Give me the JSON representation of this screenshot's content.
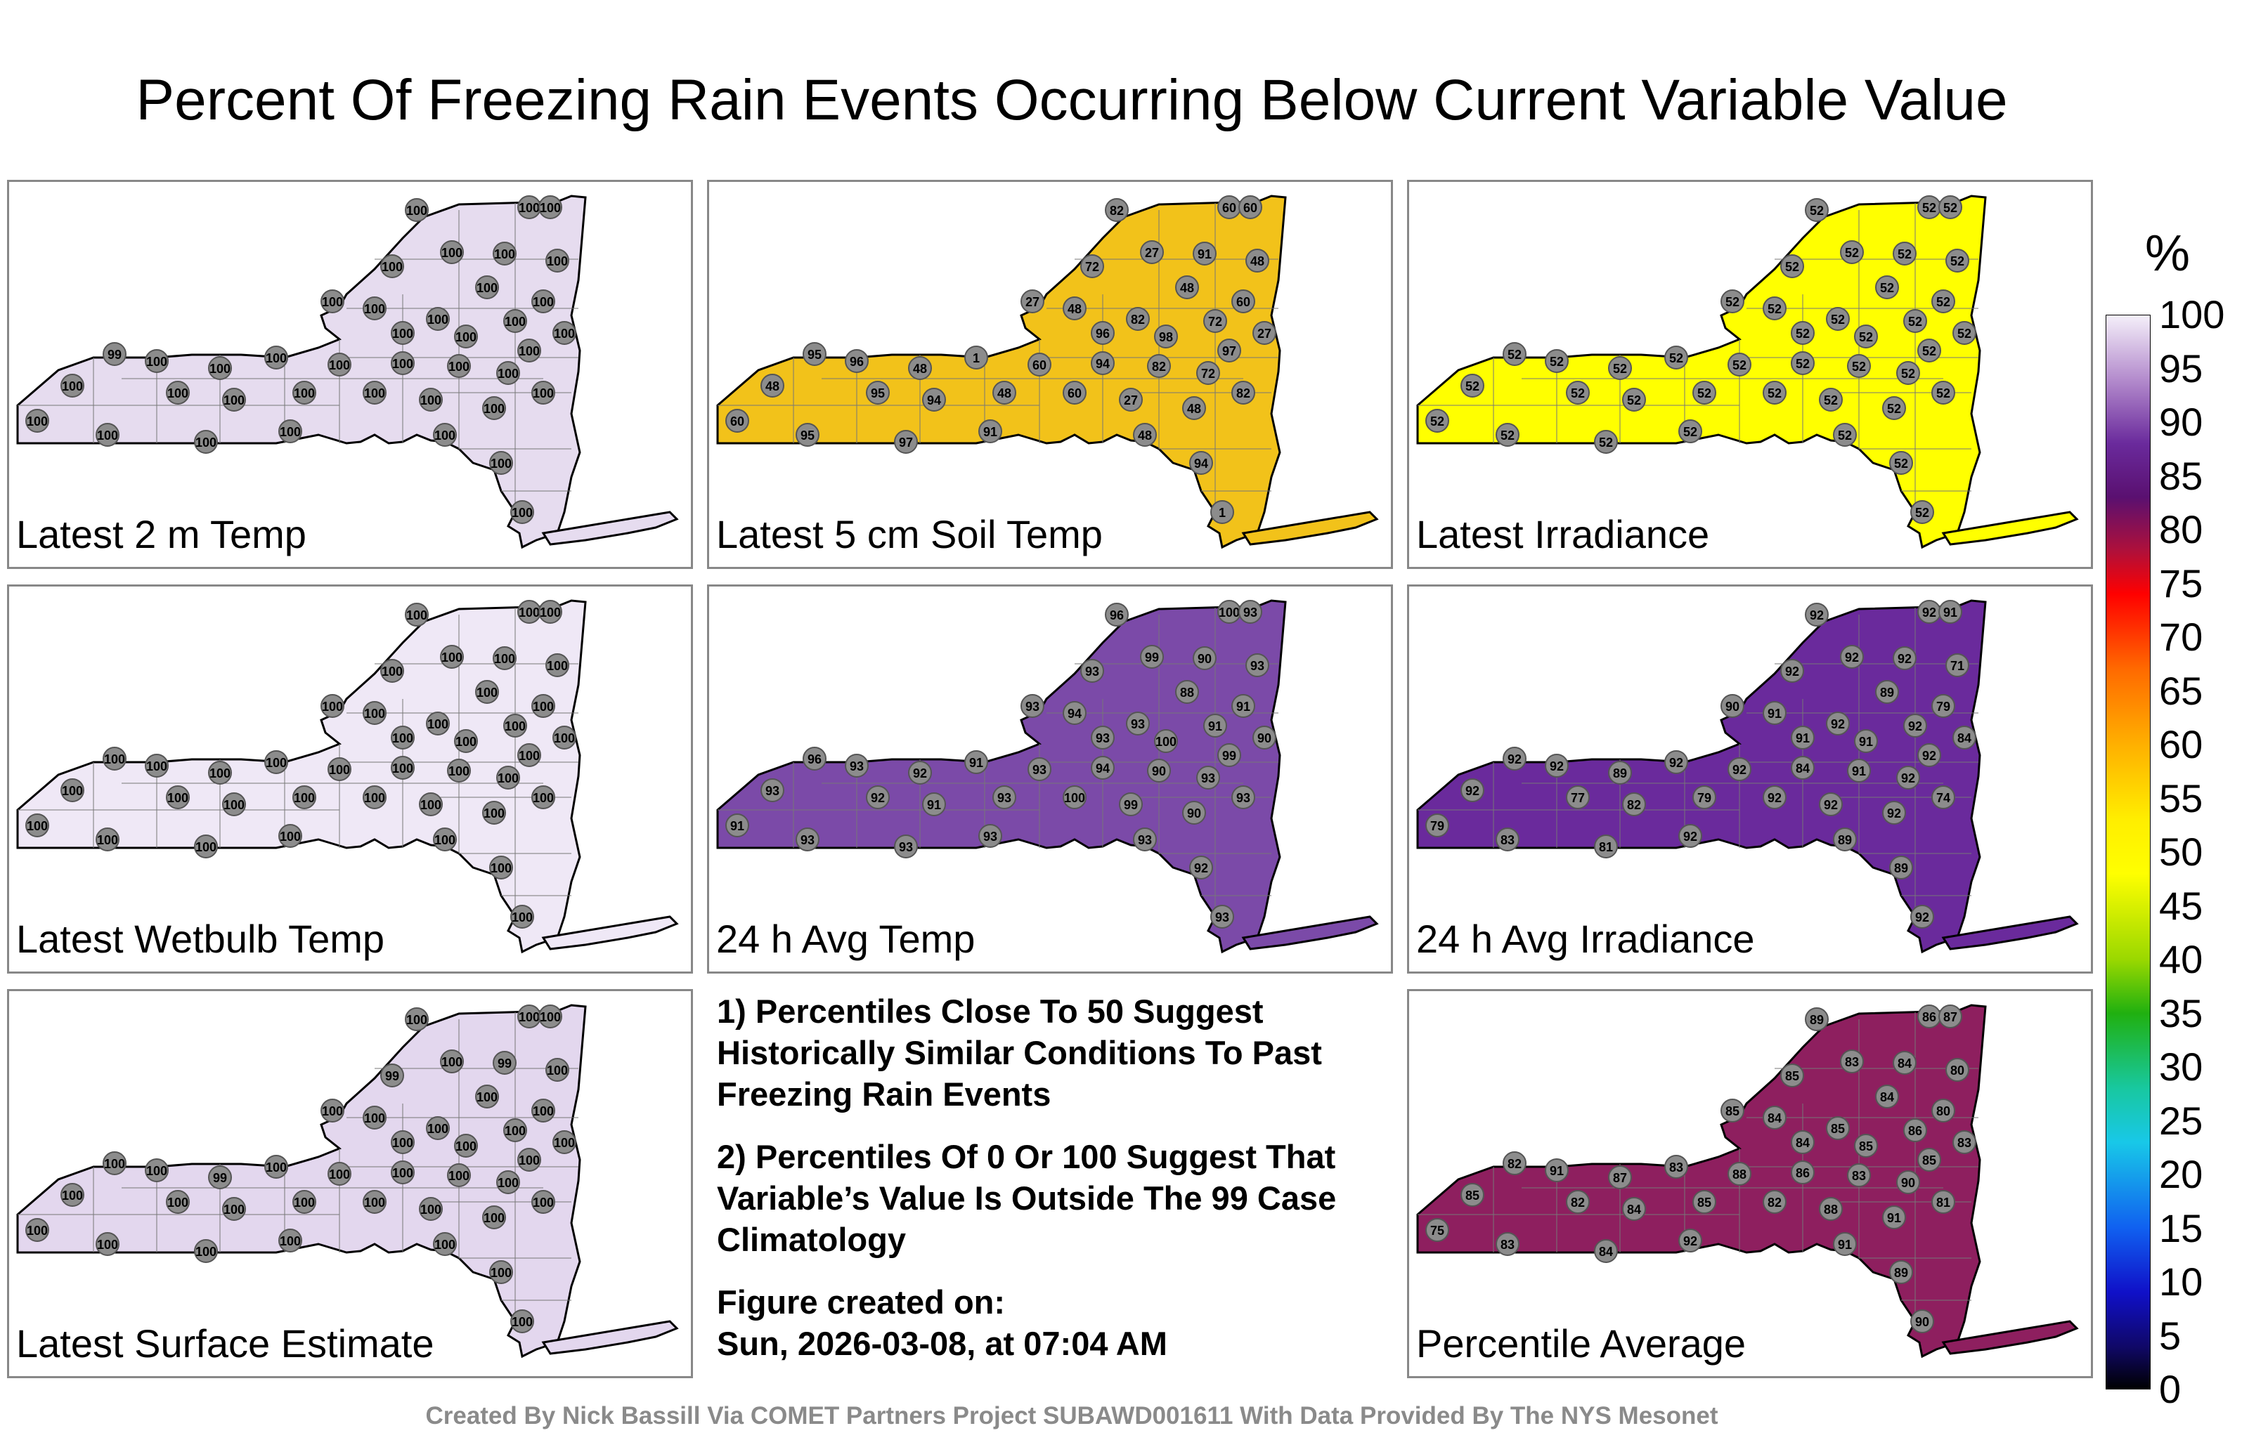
{
  "title": "Percent Of Freezing Rain Events Occurring Below Current Variable Value",
  "colorbar": {
    "unit": "%",
    "ticks": [
      "100",
      "95",
      "90",
      "85",
      "80",
      "75",
      "70",
      "65",
      "60",
      "55",
      "50",
      "45",
      "40",
      "35",
      "30",
      "25",
      "20",
      "15",
      "10",
      "5",
      "0"
    ]
  },
  "panels": [
    {
      "label": "Latest 2 m Temp",
      "fill": "#e6dcef",
      "stations": [
        "100",
        "100",
        "100",
        "100",
        "100",
        "100",
        "100",
        "100",
        "100",
        "100",
        "100",
        "100",
        "100",
        "100",
        "100",
        "100",
        "100",
        "99",
        "100",
        "100",
        "100",
        "100",
        "100",
        "100",
        "100",
        "100",
        "100",
        "100",
        "100",
        "100",
        "100",
        "100",
        "100",
        "100",
        "100",
        "100",
        "100",
        "100",
        "100",
        "100"
      ]
    },
    {
      "label": "Latest 5 cm Soil Temp",
      "fill": "#f2c21a",
      "stations": [
        "82",
        "60",
        "60",
        "27",
        "72",
        "91",
        "48",
        "27",
        "48",
        "60",
        "48",
        "82",
        "72",
        "27",
        "96",
        "98",
        "97",
        "95",
        "96",
        "48",
        "1",
        "60",
        "94",
        "82",
        "72",
        "48",
        "95",
        "94",
        "48",
        "60",
        "27",
        "48",
        "82",
        "60",
        "95",
        "97",
        "91",
        "48",
        "94",
        "1"
      ]
    },
    {
      "label": "Latest Irradiance",
      "fill": "#ffff00",
      "stations": [
        "52",
        "52",
        "52",
        "52",
        "52",
        "52",
        "52",
        "52",
        "52",
        "52",
        "52",
        "52",
        "52",
        "52",
        "52",
        "52",
        "52",
        "52",
        "52",
        "52",
        "52",
        "52",
        "52",
        "52",
        "52",
        "52",
        "52",
        "52",
        "52",
        "52",
        "52",
        "52",
        "52",
        "52",
        "52",
        "52",
        "52",
        "52",
        "52",
        "52"
      ]
    },
    {
      "label": "Latest Wetbulb Temp",
      "fill": "#efe8f6",
      "stations": [
        "100",
        "100",
        "100",
        "100",
        "100",
        "100",
        "100",
        "100",
        "100",
        "100",
        "100",
        "100",
        "100",
        "100",
        "100",
        "100",
        "100",
        "100",
        "100",
        "100",
        "100",
        "100",
        "100",
        "100",
        "100",
        "100",
        "100",
        "100",
        "100",
        "100",
        "100",
        "100",
        "100",
        "100",
        "100",
        "100",
        "100",
        "100",
        "100",
        "100"
      ]
    },
    {
      "label": "24 h Avg Temp",
      "fill": "#7b4aa8",
      "stations": [
        "96",
        "100",
        "93",
        "99",
        "93",
        "90",
        "93",
        "93",
        "88",
        "91",
        "94",
        "93",
        "91",
        "90",
        "93",
        "100",
        "99",
        "96",
        "93",
        "92",
        "91",
        "93",
        "94",
        "90",
        "93",
        "93",
        "92",
        "91",
        "93",
        "100",
        "99",
        "90",
        "93",
        "91",
        "93",
        "93",
        "93",
        "93",
        "92",
        "93"
      ]
    },
    {
      "label": "24 h Avg Irradiance",
      "fill": "#6a2a9c",
      "stations": [
        "92",
        "92",
        "91",
        "92",
        "92",
        "92",
        "71",
        "90",
        "89",
        "79",
        "91",
        "92",
        "92",
        "84",
        "91",
        "91",
        "92",
        "92",
        "92",
        "89",
        "92",
        "92",
        "84",
        "91",
        "92",
        "92",
        "77",
        "82",
        "79",
        "92",
        "92",
        "92",
        "74",
        "79",
        "83",
        "81",
        "92",
        "89",
        "89",
        "92"
      ]
    },
    {
      "label": "Latest Surface Estimate",
      "fill": "#e3d7ee",
      "stations": [
        "100",
        "100",
        "100",
        "100",
        "99",
        "99",
        "100",
        "100",
        "100",
        "100",
        "100",
        "100",
        "100",
        "100",
        "100",
        "100",
        "100",
        "100",
        "100",
        "99",
        "100",
        "100",
        "100",
        "100",
        "100",
        "100",
        "100",
        "100",
        "100",
        "100",
        "100",
        "100",
        "100",
        "100",
        "100",
        "100",
        "100",
        "100",
        "100",
        "100"
      ]
    },
    {
      "label": "Percentile Average",
      "fill": "#8e1f5f",
      "stations": [
        "89",
        "86",
        "87",
        "83",
        "85",
        "84",
        "80",
        "85",
        "84",
        "80",
        "84",
        "85",
        "86",
        "83",
        "84",
        "85",
        "85",
        "82",
        "91",
        "87",
        "83",
        "88",
        "86",
        "83",
        "90",
        "85",
        "82",
        "84",
        "85",
        "82",
        "88",
        "91",
        "81",
        "75",
        "83",
        "84",
        "92",
        "91",
        "89",
        "90"
      ]
    }
  ],
  "notes": {
    "n1": "1) Percentiles Close To 50 Suggest Historically Similar Conditions To Past Freezing Rain Events",
    "n2": "2) Percentiles Of 0 Or 100 Suggest That Variable’s Value Is Outside The 99 Case Climatology",
    "created_label": "Figure created on:",
    "created_date": "Sun, 2026-03-08, at 07:04 AM"
  },
  "footer": "Created By Nick Bassill Via COMET Partners Project SUBAWD001611 With Data Provided By The NYS Mesonet"
}
